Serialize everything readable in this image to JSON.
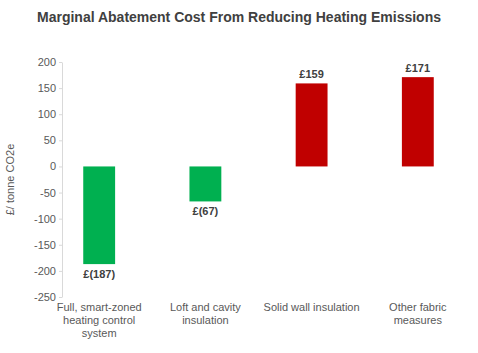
{
  "chart_data": {
    "type": "bar",
    "title": "Marginal Abatement Cost From Reducing Heating Emissions",
    "y_label": "£/ tonne CO2e",
    "categories": [
      "Full, smart-zoned heating control system",
      "Loft and cavity insulation",
      "Solid wall insulation",
      "Other fabric measures"
    ],
    "values": [
      -187,
      -67,
      159,
      171
    ],
    "value_labels": [
      "£(187)",
      "£(67)",
      "£159",
      "£171"
    ],
    "colors": [
      "#00b050",
      "#00b050",
      "#c00000",
      "#c00000"
    ],
    "ylim": [
      -250,
      200
    ],
    "yticks": [
      -250,
      -200,
      -150,
      -100,
      -50,
      0,
      50,
      100,
      150,
      200
    ],
    "grid": false,
    "data_labels": true
  }
}
